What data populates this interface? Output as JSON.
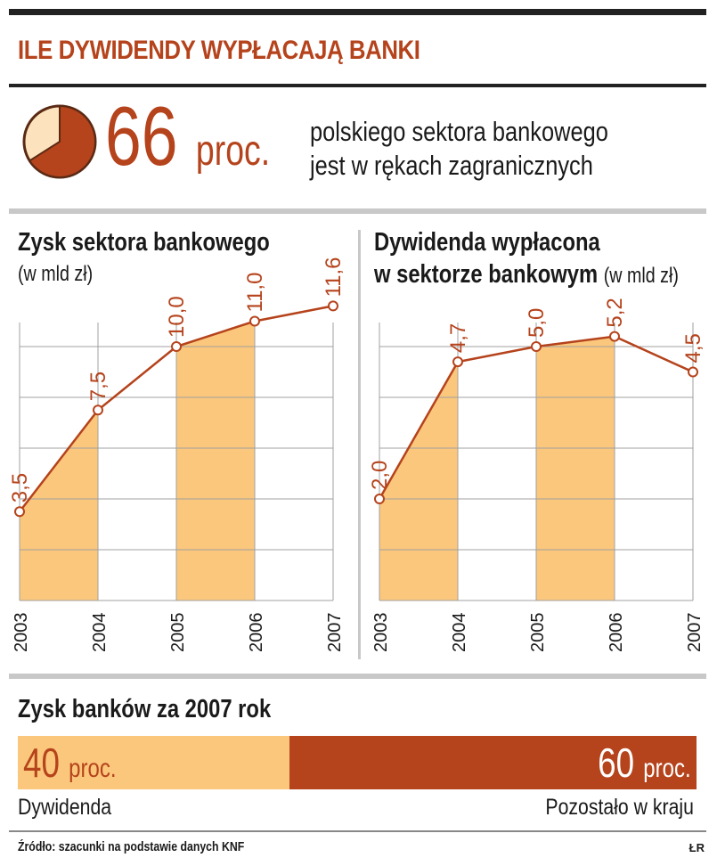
{
  "title": "ILE DYWIDENDY WYPŁACAJĄ BANKI",
  "highlight": {
    "value": "66",
    "unit": "proc.",
    "share": 0.66,
    "text_line1": "polskiego sektora bankowego",
    "text_line2": "jest w rękach zagranicznych"
  },
  "colors": {
    "accent": "#b5431c",
    "fill": "#fbc77c",
    "pie_light": "#fde3bd",
    "grid": "#a0a0a0",
    "rule": "#c8c8c8"
  },
  "chart_data": [
    {
      "type": "line",
      "title": "Zysk sektora bankowego",
      "subtitle": "(w mld zł)",
      "categories": [
        "2003",
        "2004",
        "2005",
        "2006",
        "2007"
      ],
      "values": [
        3.5,
        7.5,
        10.0,
        11.0,
        11.6
      ],
      "value_labels": [
        "3,5",
        "7,5",
        "10,0",
        "11,0",
        "11,6"
      ],
      "shaded_intervals": [
        [
          "2003",
          "2004"
        ],
        [
          "2005",
          "2006"
        ]
      ],
      "ylim": [
        0,
        12
      ],
      "grid": true
    },
    {
      "type": "line",
      "title_line1": "Dywidenda wypłacona",
      "title_line2": "w sektorze bankowym",
      "subtitle": "(w mld zł)",
      "categories": [
        "2003",
        "2004",
        "2005",
        "2006",
        "2007"
      ],
      "values": [
        2.0,
        4.7,
        5.0,
        5.2,
        4.5
      ],
      "value_labels": [
        "2,0",
        "4,7",
        "5,0",
        "5,2",
        "4,5"
      ],
      "shaded_intervals": [
        [
          "2003",
          "2004"
        ],
        [
          "2005",
          "2006"
        ]
      ],
      "ylim": [
        0,
        6
      ],
      "grid": true
    },
    {
      "type": "bar",
      "title": "Zysk banków za 2007 rok",
      "stacked": true,
      "categories": [
        "Dywidenda",
        "Pozostało w kraju"
      ],
      "values": [
        40,
        60
      ],
      "value_labels": [
        "40",
        "60"
      ],
      "unit": "proc."
    }
  ],
  "footer": {
    "source": "Źródło: szacunki na podstawie danych KNF",
    "author": "ŁR"
  }
}
